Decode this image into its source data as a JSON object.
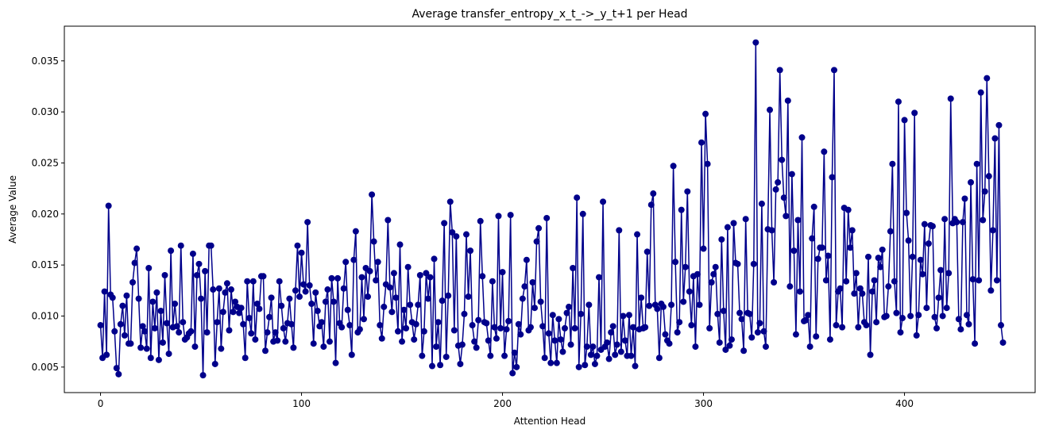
{
  "chart_data": {
    "type": "line",
    "title": "Average transfer_entropy_x_t_->_y_t+1 per Head",
    "xlabel": "Attention Head",
    "ylabel": "Average Value",
    "xlim": [
      -18,
      465
    ],
    "ylim": [
      0.0025,
      0.0384
    ],
    "xticks": [
      0,
      100,
      200,
      300,
      400
    ],
    "xtick_labels": [
      "0",
      "100",
      "200",
      "300",
      "400"
    ],
    "yticks": [
      0.005,
      0.01,
      0.015,
      0.02,
      0.025,
      0.03,
      0.035
    ],
    "ytick_labels": [
      "0.005",
      "0.010",
      "0.015",
      "0.020",
      "0.025",
      "0.030",
      "0.035"
    ],
    "grid": false,
    "marker": "circle",
    "series": [
      {
        "color": "#00008b",
        "x_start": 0,
        "values": [
          0.0091,
          0.0059,
          0.0124,
          0.0062,
          0.0208,
          0.0121,
          0.0118,
          0.0085,
          0.0049,
          0.0043,
          0.0092,
          0.011,
          0.0081,
          0.012,
          0.0073,
          0.0073,
          0.0133,
          0.0152,
          0.0166,
          0.0117,
          0.0069,
          0.009,
          0.0085,
          0.0068,
          0.0147,
          0.0059,
          0.0114,
          0.0088,
          0.0123,
          0.0057,
          0.0105,
          0.0074,
          0.014,
          0.0093,
          0.0063,
          0.0164,
          0.0089,
          0.0112,
          0.009,
          0.0084,
          0.0169,
          0.0094,
          0.0077,
          0.0079,
          0.0083,
          0.0085,
          0.0161,
          0.007,
          0.014,
          0.0151,
          0.0117,
          0.0042,
          0.0144,
          0.0084,
          0.0169,
          0.0169,
          0.0126,
          0.0053,
          0.0094,
          0.0127,
          0.0068,
          0.0104,
          0.0123,
          0.0132,
          0.0086,
          0.0126,
          0.0104,
          0.0114,
          0.0109,
          0.0103,
          0.0108,
          0.0092,
          0.0059,
          0.0134,
          0.0098,
          0.0083,
          0.0134,
          0.0077,
          0.0112,
          0.0107,
          0.0139,
          0.0139,
          0.0066,
          0.0084,
          0.0099,
          0.0118,
          0.0075,
          0.0084,
          0.0076,
          0.0134,
          0.011,
          0.0088,
          0.0075,
          0.0093,
          0.0117,
          0.0092,
          0.0069,
          0.0125,
          0.0169,
          0.0119,
          0.0162,
          0.0131,
          0.0124,
          0.0192,
          0.013,
          0.0112,
          0.0073,
          0.0123,
          0.0105,
          0.009,
          0.0094,
          0.007,
          0.0114,
          0.0126,
          0.0075,
          0.0137,
          0.0114,
          0.0054,
          0.0137,
          0.0093,
          0.0089,
          0.0127,
          0.0153,
          0.0106,
          0.0091,
          0.0062,
          0.0155,
          0.0183,
          0.0084,
          0.0087,
          0.0138,
          0.0097,
          0.0147,
          0.0119,
          0.0144,
          0.0219,
          0.0173,
          0.0135,
          0.0153,
          0.0091,
          0.0078,
          0.0109,
          0.0131,
          0.0194,
          0.0128,
          0.0104,
          0.0142,
          0.0118,
          0.0085,
          0.017,
          0.0075,
          0.0106,
          0.0088,
          0.0148,
          0.0111,
          0.0094,
          0.0077,
          0.0092,
          0.0111,
          0.014,
          0.0061,
          0.0085,
          0.0142,
          0.0117,
          0.0138,
          0.0051,
          0.0156,
          0.007,
          0.0094,
          0.0052,
          0.0115,
          0.0191,
          0.006,
          0.012,
          0.0212,
          0.0182,
          0.0086,
          0.0178,
          0.0071,
          0.0053,
          0.0072,
          0.0102,
          0.018,
          0.0119,
          0.0164,
          0.0091,
          0.0075,
          0.0069,
          0.0096,
          0.0193,
          0.0139,
          0.0094,
          0.0093,
          0.0076,
          0.0061,
          0.0134,
          0.0089,
          0.0078,
          0.0198,
          0.0088,
          0.0143,
          0.0061,
          0.0087,
          0.0095,
          0.0199,
          0.0044,
          0.0064,
          0.005,
          0.0092,
          0.0082,
          0.0117,
          0.0129,
          0.0155,
          0.0086,
          0.0089,
          0.0133,
          0.0108,
          0.0173,
          0.0186,
          0.0114,
          0.009,
          0.0059,
          0.0196,
          0.0083,
          0.0054,
          0.0101,
          0.0076,
          0.0054,
          0.0097,
          0.0077,
          0.0065,
          0.0088,
          0.0103,
          0.0109,
          0.0072,
          0.0147,
          0.0088,
          0.0216,
          0.005,
          0.0102,
          0.02,
          0.0052,
          0.007,
          0.0111,
          0.0062,
          0.007,
          0.0053,
          0.0061,
          0.0138,
          0.0067,
          0.0212,
          0.007,
          0.0074,
          0.0058,
          0.0084,
          0.009,
          0.0062,
          0.0072,
          0.0184,
          0.0065,
          0.01,
          0.0076,
          0.0061,
          0.0101,
          0.0061,
          0.0089,
          0.0051,
          0.018,
          0.0087,
          0.0118,
          0.0088,
          0.0089,
          0.0163,
          0.011,
          0.0209,
          0.022,
          0.0111,
          0.0107,
          0.0059,
          0.0112,
          0.0109,
          0.0082,
          0.0076,
          0.0073,
          0.0111,
          0.0247,
          0.0153,
          0.0084,
          0.0094,
          0.0204,
          0.0114,
          0.0148,
          0.0222,
          0.0124,
          0.0091,
          0.0139,
          0.007,
          0.0141,
          0.0111,
          0.027,
          0.0166,
          0.0298,
          0.0249,
          0.0088,
          0.0133,
          0.0141,
          0.0148,
          0.0102,
          0.0074,
          0.0175,
          0.0105,
          0.0067,
          0.0187,
          0.0071,
          0.0077,
          0.0191,
          0.0152,
          0.0151,
          0.0103,
          0.0097,
          0.0066,
          0.0195,
          0.0103,
          0.0102,
          0.0079,
          0.0151,
          0.0368,
          0.0084,
          0.0093,
          0.021,
          0.0085,
          0.007,
          0.0185,
          0.0302,
          0.0184,
          0.0133,
          0.0224,
          0.0231,
          0.0341,
          0.0253,
          0.0216,
          0.0198,
          0.0311,
          0.0129,
          0.0239,
          0.0164,
          0.0082,
          0.0194,
          0.0124,
          0.0275,
          0.0095,
          0.0096,
          0.0101,
          0.007,
          0.0176,
          0.0207,
          0.008,
          0.0156,
          0.0167,
          0.0167,
          0.0261,
          0.0135,
          0.0159,
          0.0077,
          0.0236,
          0.0341,
          0.0091,
          0.0124,
          0.0127,
          0.0089,
          0.0206,
          0.0134,
          0.0204,
          0.0167,
          0.0184,
          0.0122,
          0.0142,
          0.0089,
          0.0127,
          0.0122,
          0.0094,
          0.0091,
          0.0158,
          0.0062,
          0.0124,
          0.0135,
          0.0094,
          0.0157,
          0.0148,
          0.0165,
          0.0099,
          0.01,
          0.0129,
          0.0183,
          0.0249,
          0.0134,
          0.0103,
          0.031,
          0.0084,
          0.0098,
          0.0292,
          0.0201,
          0.0174,
          0.01,
          0.0158,
          0.0299,
          0.0081,
          0.0101,
          0.0155,
          0.0141,
          0.019,
          0.0108,
          0.0171,
          0.0189,
          0.0188,
          0.0099,
          0.0088,
          0.0118,
          0.0145,
          0.01,
          0.0195,
          0.0108,
          0.0142,
          0.0313,
          0.0191,
          0.0195,
          0.0192,
          0.0097,
          0.0087,
          0.0192,
          0.0215,
          0.0101,
          0.0092,
          0.0231,
          0.0136,
          0.0073,
          0.0249,
          0.0135,
          0.0319,
          0.0194,
          0.0222,
          0.0333,
          0.0237,
          0.0125,
          0.0184,
          0.0274,
          0.0135,
          0.0287,
          0.0091,
          0.0074
        ]
      }
    ]
  }
}
